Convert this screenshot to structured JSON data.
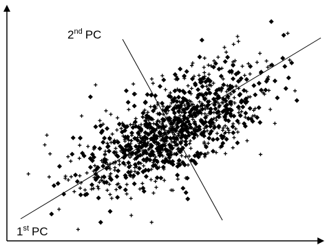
{
  "labels": {
    "pc2": {
      "base": "2",
      "sup": "nd",
      "rest": "PC"
    },
    "pc1": {
      "base": "1",
      "sup": "st",
      "rest": "PC"
    }
  }
}
